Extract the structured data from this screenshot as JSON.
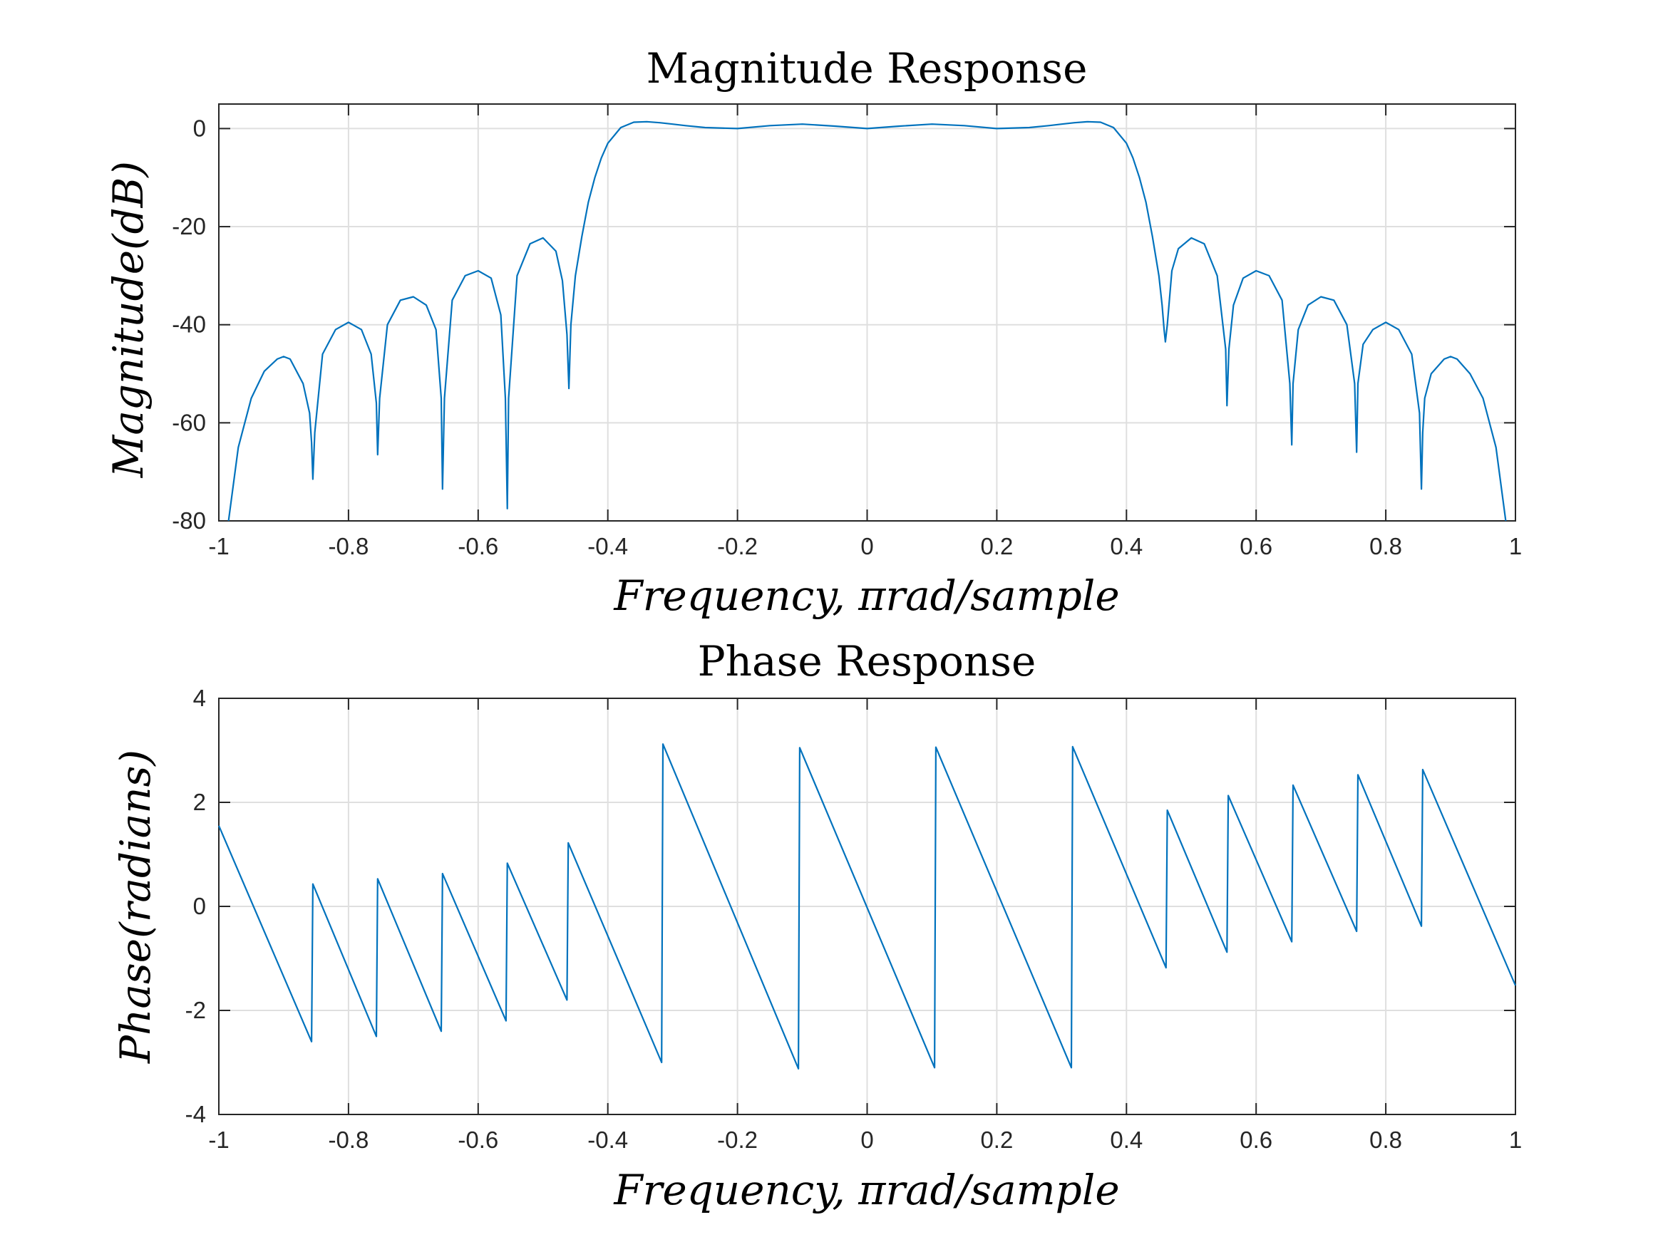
{
  "colors": {
    "series": "#0072BD"
  },
  "chart_data": [
    {
      "type": "line",
      "title": "Magnitude Response",
      "xlabel": "Frequency, πrad/sample",
      "ylabel": "Magnitude(dB)",
      "xlim": [
        -1,
        1
      ],
      "ylim": [
        -80,
        5
      ],
      "xticks": [
        -1,
        -0.8,
        -0.6,
        -0.4,
        -0.2,
        0,
        0.2,
        0.4,
        0.6,
        0.8,
        1
      ],
      "xtick_labels": [
        "-1",
        "-0.8",
        "-0.6",
        "-0.4",
        "-0.2",
        "0",
        "0.2",
        "0.4",
        "0.6",
        "0.8",
        "1"
      ],
      "yticks": [
        -80,
        -60,
        -40,
        -20,
        0
      ],
      "ytick_labels": [
        "-80",
        "-60",
        "-40",
        "-20",
        "0"
      ],
      "grid": true,
      "series": [
        {
          "x": [
            -0.985,
            -0.97,
            -0.95,
            -0.93,
            -0.91,
            -0.9,
            -0.89,
            -0.87,
            -0.86,
            -0.857,
            -0.855,
            -0.852,
            -0.84,
            -0.82,
            -0.8,
            -0.78,
            -0.765,
            -0.757,
            -0.755,
            -0.752,
            -0.74,
            -0.72,
            -0.7,
            -0.68,
            -0.665,
            -0.657,
            -0.655,
            -0.652,
            -0.64,
            -0.62,
            -0.6,
            -0.58,
            -0.565,
            -0.558,
            -0.555,
            -0.553,
            -0.54,
            -0.52,
            -0.5,
            -0.48,
            -0.47,
            -0.463,
            -0.46,
            -0.457,
            -0.45,
            -0.44,
            -0.43,
            -0.42,
            -0.41,
            -0.4,
            -0.38,
            -0.36,
            -0.34,
            -0.32,
            -0.3,
            -0.28,
            -0.25,
            -0.2,
            -0.15,
            -0.1,
            -0.05,
            0,
            0.05,
            0.1,
            0.15,
            0.2,
            0.25,
            0.28,
            0.3,
            0.32,
            0.34,
            0.36,
            0.38,
            0.4,
            0.41,
            0.42,
            0.43,
            0.44,
            0.45,
            0.455,
            0.458,
            0.46,
            0.463,
            0.47,
            0.48,
            0.5,
            0.52,
            0.54,
            0.553,
            0.555,
            0.558,
            0.565,
            0.58,
            0.6,
            0.62,
            0.64,
            0.652,
            0.655,
            0.657,
            0.665,
            0.68,
            0.7,
            0.72,
            0.74,
            0.752,
            0.755,
            0.757,
            0.765,
            0.78,
            0.8,
            0.82,
            0.84,
            0.852,
            0.855,
            0.857,
            0.86,
            0.87,
            0.89,
            0.9,
            0.91,
            0.93,
            0.95,
            0.97,
            0.985
          ],
          "y": [
            -80,
            -65,
            -55,
            -49.5,
            -47,
            -46.5,
            -47,
            -52,
            -58,
            -64,
            -71.5,
            -62,
            -46,
            -41,
            -39.5,
            -41,
            -46,
            -56,
            -66.5,
            -55,
            -40,
            -35,
            -34.3,
            -36,
            -41,
            -55,
            -73.5,
            -55,
            -35,
            -30,
            -29,
            -30.5,
            -38,
            -55,
            -77.5,
            -55,
            -30,
            -23.5,
            -22.3,
            -25,
            -31,
            -42,
            -53,
            -40,
            -30,
            -22,
            -15,
            -10,
            -6,
            -3,
            0.2,
            1.3,
            1.4,
            1.2,
            0.9,
            0.6,
            0.2,
            0,
            0.6,
            0.9,
            0.5,
            0,
            0.5,
            0.9,
            0.6,
            0,
            0.2,
            0.6,
            0.9,
            1.2,
            1.4,
            1.3,
            0.2,
            -3,
            -6,
            -10,
            -15,
            -22,
            -30,
            -36,
            -41,
            -43.5,
            -40,
            -29,
            -24.5,
            -22.3,
            -23.5,
            -30,
            -45,
            -56.5,
            -45,
            -36,
            -30.5,
            -29,
            -30,
            -35,
            -52,
            -64.5,
            -52,
            -41,
            -36,
            -34.3,
            -35,
            -40,
            -52,
            -66,
            -52,
            -44,
            -41,
            -39.5,
            -41,
            -46,
            -58,
            -73.5,
            -62,
            -55,
            -50,
            -47,
            -46.5,
            -47,
            -50,
            -55,
            -65,
            -80
          ]
        }
      ]
    },
    {
      "type": "line",
      "title": "Phase Response",
      "xlabel": "Frequency, πrad/sample",
      "ylabel": "Phase(radians)",
      "xlim": [
        -1,
        1
      ],
      "ylim": [
        -4,
        4
      ],
      "xticks": [
        -1,
        -0.8,
        -0.6,
        -0.4,
        -0.2,
        0,
        0.2,
        0.4,
        0.6,
        0.8,
        1
      ],
      "xtick_labels": [
        "-1",
        "-0.8",
        "-0.6",
        "-0.4",
        "-0.2",
        "0",
        "0.2",
        "0.4",
        "0.6",
        "0.8",
        "1"
      ],
      "yticks": [
        -4,
        -2,
        0,
        2,
        4
      ],
      "ytick_labels": [
        "-4",
        "-2",
        "0",
        "2",
        "4"
      ],
      "grid": true,
      "series": [
        {
          "x": [
            -1,
            -0.857,
            -0.855,
            -0.757,
            -0.755,
            -0.657,
            -0.655,
            -0.557,
            -0.555,
            -0.463,
            -0.461,
            -0.317,
            -0.315,
            -0.106,
            -0.104,
            0.104,
            0.106,
            0.315,
            0.317,
            0.461,
            0.463,
            0.555,
            0.557,
            0.655,
            0.657,
            0.755,
            0.757,
            0.855,
            0.857,
            1
          ],
          "y": [
            1.55,
            -2.6,
            0.43,
            -2.5,
            0.53,
            -2.4,
            0.63,
            -2.2,
            0.83,
            -1.8,
            1.22,
            -3.0,
            3.12,
            -3.12,
            3.05,
            -3.1,
            3.06,
            -3.1,
            3.07,
            -1.18,
            1.85,
            -0.88,
            2.13,
            -0.68,
            2.33,
            -0.48,
            2.53,
            -0.38,
            2.63,
            -1.52
          ]
        }
      ]
    }
  ]
}
